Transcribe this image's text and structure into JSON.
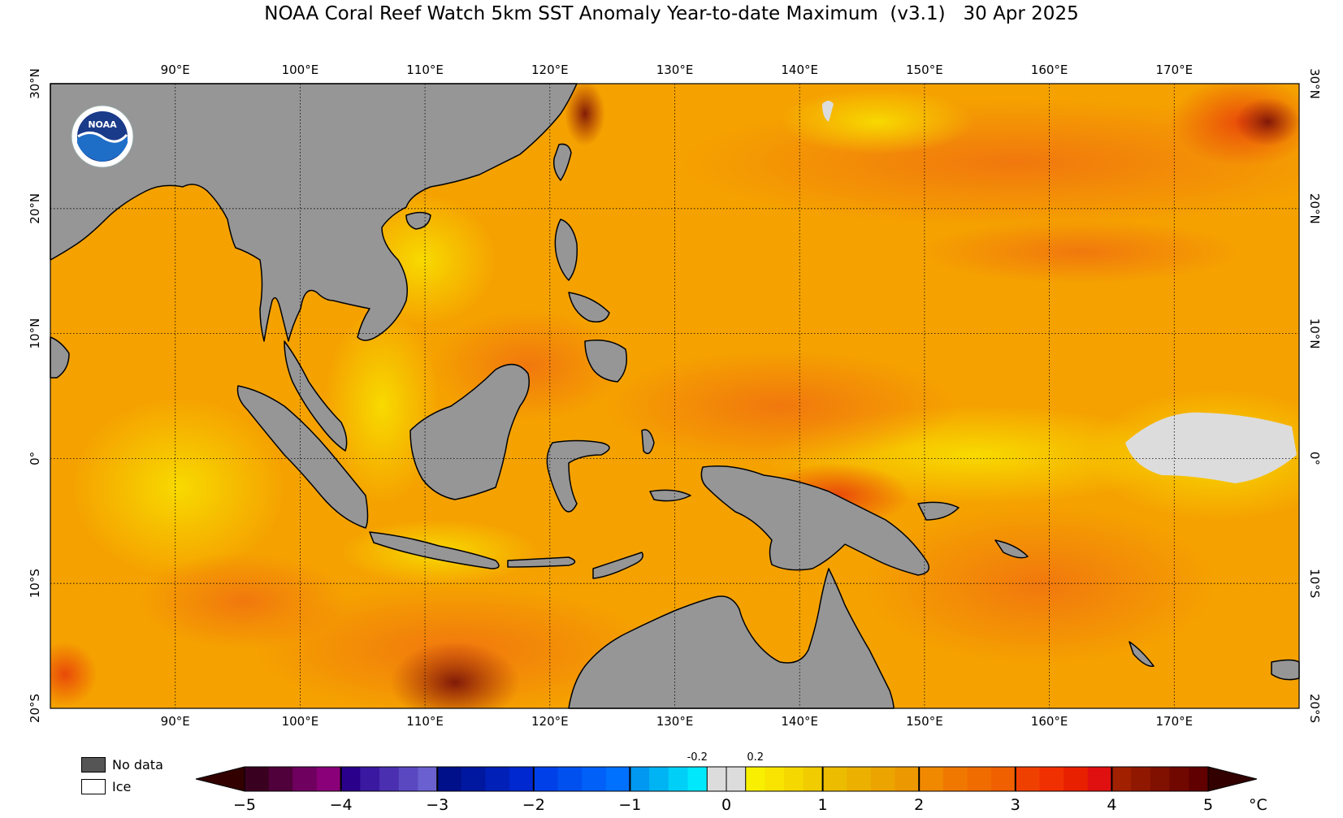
{
  "title": "NOAA Coral Reef Watch 5km SST Anomaly Year-to-date Maximum  (v3.1)   30 Apr 2025",
  "logo": {
    "text": "NOAA",
    "icon": "noaa-logo"
  },
  "map": {
    "lon_range": [
      80,
      180
    ],
    "lat_range": [
      -20,
      30
    ],
    "lon_ticks": [
      "90°E",
      "100°E",
      "110°E",
      "120°E",
      "130°E",
      "140°E",
      "150°E",
      "160°E",
      "170°E"
    ],
    "lat_ticks": [
      "30°N",
      "20°N",
      "10°N",
      "0°",
      "10°S",
      "20°S"
    ],
    "colors": {
      "land": "#969696",
      "ice": "#dcdcdc",
      "ocean_base": "#f5a200"
    }
  },
  "legend": {
    "no_data_label": "No data",
    "no_data_color": "#555555",
    "ice_label": "Ice",
    "ice_color": "#ffffff"
  },
  "colorbar": {
    "min": -5,
    "max": 5,
    "unit": "°C",
    "tick_labels": [
      "−5",
      "−4",
      "−3",
      "−2",
      "−1",
      "0",
      "1",
      "2",
      "3",
      "4",
      "5"
    ],
    "small_labels": [
      "-0.2",
      "0.2"
    ],
    "under_color": "#330000",
    "over_color": "#330000"
  }
}
